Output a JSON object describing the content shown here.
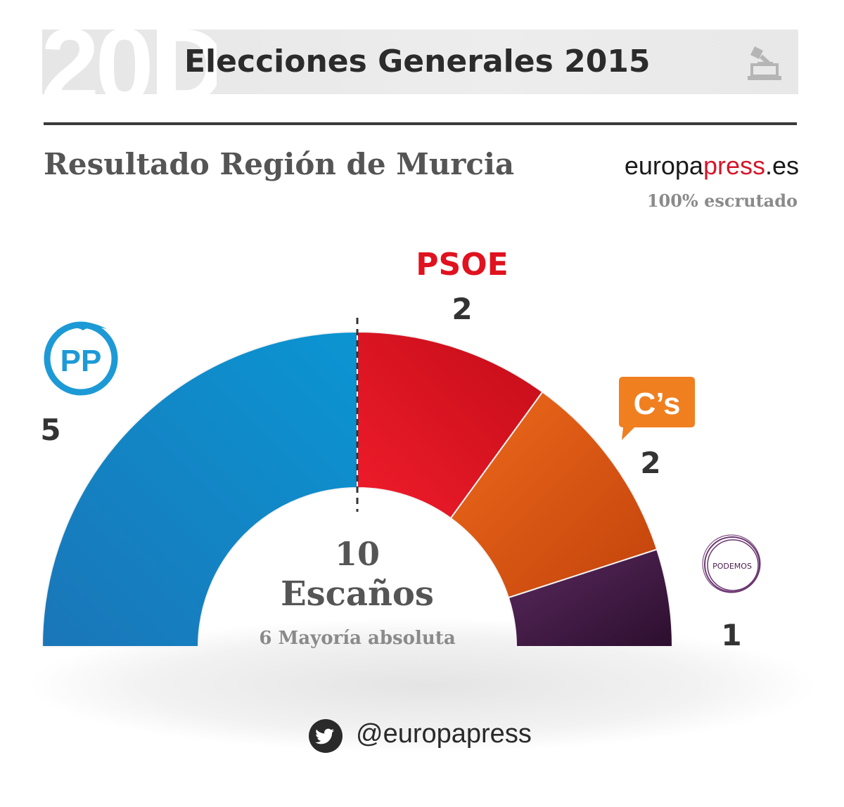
{
  "header": {
    "logo_text": "20D",
    "title": "Elecciones Generales 2015",
    "icon": "ballot-box-icon"
  },
  "subtitle": "Resultado Región de Murcia",
  "brand": {
    "prefix": "europa",
    "accent": "press",
    "suffix": ".es"
  },
  "scrutiny": "100% escrutado",
  "center": {
    "total": "10",
    "label": "Escaños",
    "majority": "6 Mayoría absoluta"
  },
  "footer": {
    "icon": "twitter-icon",
    "handle": "@europapress"
  },
  "colors": {
    "PP": "#0a8fce",
    "PSOE": "#e0121f",
    "Cs": "#e85c11",
    "Podemos": "#4a1d4f",
    "divider": "#333333"
  },
  "chart_data": {
    "type": "pie",
    "variant": "half-donut (parliament)",
    "title": "Resultado Región de Murcia",
    "total_seats": 10,
    "majority": 6,
    "parties": [
      {
        "name": "PP",
        "logo_text": "PP",
        "seats": 5,
        "color": "#0a8fce"
      },
      {
        "name": "PSOE",
        "logo_text": "PSOE",
        "seats": 2,
        "color": "#e0121f"
      },
      {
        "name": "C's",
        "logo_text": "C’s",
        "seats": 2,
        "color": "#e85c11"
      },
      {
        "name": "Podemos",
        "logo_text": "PODEMOS",
        "seats": 1,
        "color": "#4a1d4f"
      }
    ]
  }
}
